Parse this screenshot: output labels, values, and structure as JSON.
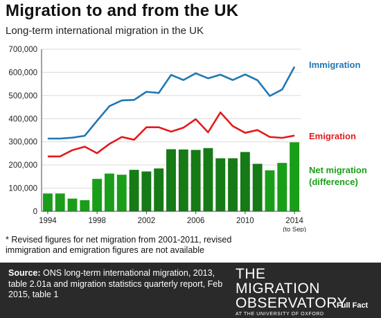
{
  "header": {
    "title": "Migration to and from the UK",
    "subtitle": "Long-term international migration in the UK"
  },
  "labels": {
    "immigration": "Immigration",
    "emigration": "Emigration",
    "net_line1": "Net migration",
    "net_line2": "(difference)"
  },
  "footnote": "* Revised figures for net migration from 2001-2011, revised immigration and emigration figures are not available",
  "footer": {
    "source_label": "Source:",
    "source_text": " ONS long-term international migration, 2013, table 2.01a and migration statistics quarterly report, Feb 2015, table 1",
    "logo_line1": "THE",
    "logo_line2": "MIGRATION",
    "logo_line3": "OBSERVATORY",
    "logo_line4": "AT THE UNIVERSITY OF OXFORD",
    "fullfact": "Full Fact"
  },
  "colors": {
    "immigration": "#1f77b4",
    "emigration": "#e31a1c",
    "net": "#1a9e1a",
    "net_revised": "#167a16"
  },
  "chart_data": {
    "type": "bar",
    "title": "Migration to and from the UK",
    "subtitle": "Long-term international migration in the UK",
    "x": [
      1994,
      1995,
      1996,
      1997,
      1998,
      1999,
      2000,
      2001,
      2002,
      2003,
      2004,
      2005,
      2006,
      2007,
      2008,
      2009,
      2010,
      2011,
      2012,
      2013,
      2014
    ],
    "xticks": [
      "1994",
      "1998",
      "2002",
      "2006",
      "2010",
      "2014"
    ],
    "xtick_note": "(to Sep)",
    "ylim": [
      0,
      700000
    ],
    "yticks": [
      "0",
      "100,000",
      "200,000",
      "300,000",
      "400,000",
      "500,000",
      "600,000",
      "700,000"
    ],
    "grid": true,
    "series": [
      {
        "name": "Immigration",
        "type": "line",
        "values": [
          314000,
          314000,
          318000,
          326000,
          391000,
          454000,
          479000,
          481000,
          516000,
          511000,
          589000,
          567000,
          596000,
          574000,
          590000,
          567000,
          591000,
          566000,
          498000,
          526000,
          624000
        ]
      },
      {
        "name": "Emigration",
        "type": "line",
        "values": [
          237000,
          237000,
          264000,
          279000,
          251000,
          291000,
          321000,
          309000,
          363000,
          363000,
          344000,
          361000,
          398000,
          341000,
          427000,
          368000,
          339000,
          351000,
          321000,
          317000,
          327000
        ]
      },
      {
        "name": "Net migration (difference)",
        "type": "bar",
        "values": [
          77000,
          77000,
          55000,
          48000,
          140000,
          163000,
          158000,
          179000,
          172000,
          185000,
          268000,
          267000,
          265000,
          273000,
          229000,
          229000,
          256000,
          205000,
          177000,
          209000,
          298000
        ]
      }
    ]
  }
}
